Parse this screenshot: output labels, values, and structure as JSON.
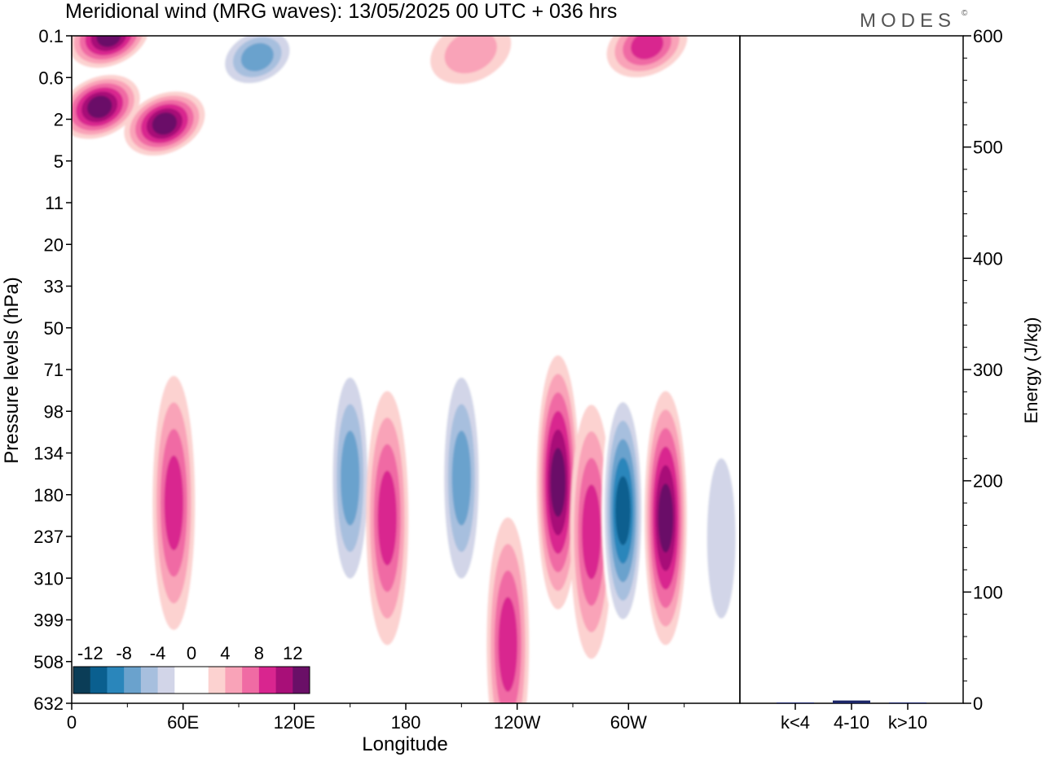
{
  "title": "Meridional wind (MRG waves):  13/05/2025  00 UTC  + 036 hrs",
  "brand": "MODES",
  "brand_mark": "©",
  "chart_data": [
    {
      "type": "heatmap",
      "xlabel": "Longitude",
      "ylabel": "Pressure levels (hPa)",
      "x_ticks": [
        "0",
        "60E",
        "120E",
        "180",
        "120W",
        "60W"
      ],
      "x_tick_degrees": [
        0,
        60,
        120,
        180,
        240,
        300
      ],
      "xlim_degrees": [
        0,
        360
      ],
      "y_ticks": [
        "0.1",
        "0.6",
        "2",
        "5",
        "11",
        "20",
        "33",
        "50",
        "71",
        "98",
        "134",
        "180",
        "237",
        "310",
        "399",
        "508",
        "632"
      ],
      "colorbar": {
        "labels": [
          "-12",
          "-8",
          "-4",
          "0",
          "4",
          "8",
          "12"
        ],
        "colors": [
          "#0b3d57",
          "#0a5f8f",
          "#2a86bb",
          "#6aa2cd",
          "#a7bfde",
          "#d2d5e8",
          "#ffffff",
          "#ffffff",
          "#fcd2d0",
          "#f9a3b8",
          "#f06ba4",
          "#d9258f",
          "#a80f78",
          "#6a0f67"
        ]
      },
      "features": [
        {
          "lon": 20,
          "lev": 0.1,
          "value": 12
        },
        {
          "lon": 15,
          "lev": 1.4,
          "value": 12
        },
        {
          "lon": 50,
          "lev": 2.2,
          "value": 12
        },
        {
          "lon": 100,
          "lev": 0.25,
          "value": -8
        },
        {
          "lon": 215,
          "lev": 0.2,
          "value": 4
        },
        {
          "lon": 310,
          "lev": 0.15,
          "value": 8
        },
        {
          "lon": 55,
          "lev": 190,
          "value": 8
        },
        {
          "lon": 150,
          "lev": 160,
          "value": -8
        },
        {
          "lon": 170,
          "lev": 210,
          "value": 8
        },
        {
          "lon": 210,
          "lev": 160,
          "value": -8
        },
        {
          "lon": 235,
          "lev": 460,
          "value": 8
        },
        {
          "lon": 262,
          "lev": 165,
          "value": 12
        },
        {
          "lon": 280,
          "lev": 230,
          "value": 8
        },
        {
          "lon": 297,
          "lev": 200,
          "value": -12
        },
        {
          "lon": 320,
          "lev": 210,
          "value": 12
        },
        {
          "lon": 350,
          "lev": 240,
          "value": -4
        }
      ]
    },
    {
      "type": "bar",
      "categories": [
        "k<4",
        "4-10",
        "k>10"
      ],
      "values": [
        0.5,
        2.5,
        0.3
      ],
      "ylabel": "Energy (J/kg)",
      "ylim": [
        0,
        600
      ],
      "y_ticks": [
        "0",
        "100",
        "200",
        "300",
        "400",
        "500",
        "600"
      ],
      "bar_color": "#1a2466"
    }
  ]
}
